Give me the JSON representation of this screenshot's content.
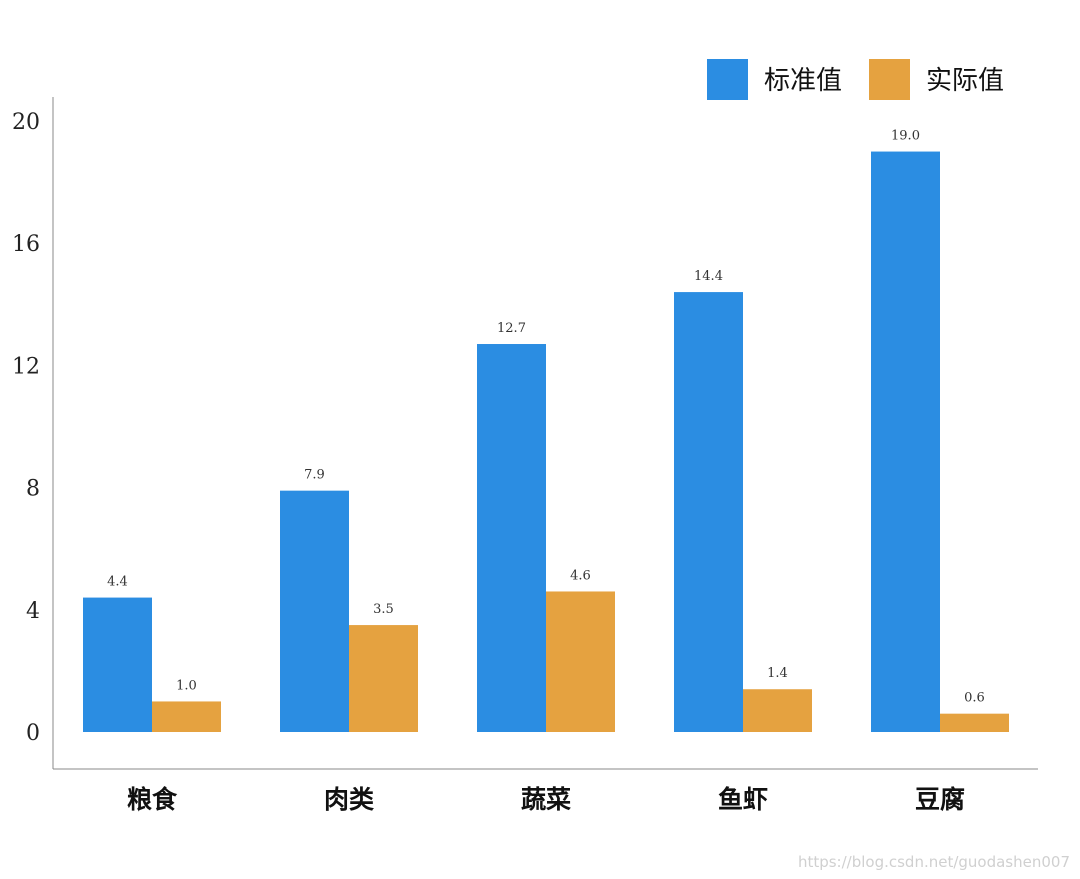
{
  "chart_data": {
    "type": "bar",
    "categories": [
      "粮食",
      "肉类",
      "蔬菜",
      "鱼虾",
      "豆腐"
    ],
    "series": [
      {
        "name": "标准值",
        "values": [
          4.4,
          7.9,
          12.7,
          14.4,
          19.0
        ],
        "labels": [
          "4.4",
          "7.9",
          "12.7",
          "14.4",
          "19.0"
        ],
        "color": "#2b8de2"
      },
      {
        "name": "实际值",
        "values": [
          1.0,
          3.5,
          4.6,
          1.4,
          0.6
        ],
        "labels": [
          "1.0",
          "3.5",
          "4.6",
          "1.4",
          "0.6"
        ],
        "color": "#e5a240"
      }
    ],
    "yticks": [
      "0",
      "4",
      "8",
      "12",
      "16",
      "20"
    ],
    "ylim": [
      -1.2,
      20.8
    ],
    "legend_position": "top-right",
    "grid": false
  },
  "watermark": "https://blog.csdn.net/guodashen007"
}
